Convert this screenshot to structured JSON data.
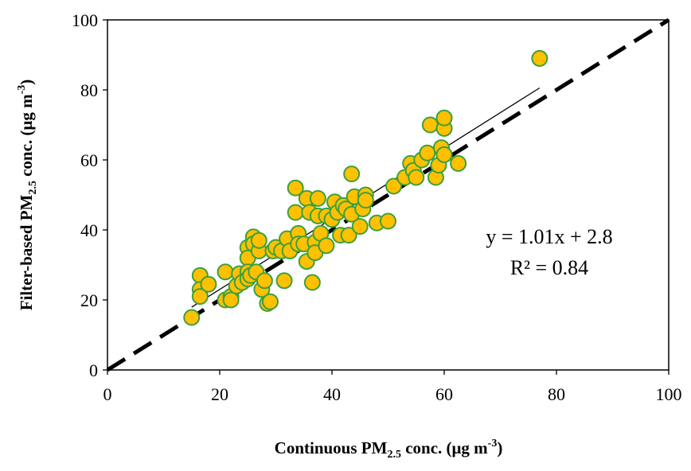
{
  "chart_data": {
    "type": "scatter",
    "title": "",
    "xlabel": {
      "pre": "Continuous PM",
      "sub": "2.5",
      "post": " conc. (μg m",
      "sup": "-3",
      "end": ")"
    },
    "ylabel": {
      "pre": "Filter-based PM",
      "sub": "2.5",
      "post": " conc. (μg m",
      "sup": "-3",
      "end": ")"
    },
    "xlim": [
      0,
      100
    ],
    "ylim": [
      0,
      100
    ],
    "xticks": [
      "0",
      "20",
      "40",
      "60",
      "80",
      "100"
    ],
    "yticks": [
      "0",
      "20",
      "40",
      "60",
      "80",
      "100"
    ],
    "grid": false,
    "legend": "none",
    "marker_fill": "#FFC000",
    "marker_edge": "#3CA03C",
    "points": [
      [
        15,
        15
      ],
      [
        16.5,
        27
      ],
      [
        16.5,
        23
      ],
      [
        16.5,
        21
      ],
      [
        18,
        24.5
      ],
      [
        21,
        28
      ],
      [
        21,
        20
      ],
      [
        22,
        21
      ],
      [
        22,
        20
      ],
      [
        23,
        24
      ],
      [
        23.5,
        27.5
      ],
      [
        24,
        25
      ],
      [
        25,
        35
      ],
      [
        25,
        32
      ],
      [
        25,
        28
      ],
      [
        25,
        26
      ],
      [
        25.5,
        27
      ],
      [
        26,
        38
      ],
      [
        26,
        36
      ],
      [
        26.5,
        28
      ],
      [
        27,
        34
      ],
      [
        27,
        37
      ],
      [
        27.5,
        23
      ],
      [
        28,
        25.5
      ],
      [
        28.5,
        19
      ],
      [
        29,
        19.5
      ],
      [
        29.5,
        34
      ],
      [
        30,
        35
      ],
      [
        31,
        34
      ],
      [
        31.5,
        25.5
      ],
      [
        32,
        37.5
      ],
      [
        32.5,
        34
      ],
      [
        33.5,
        52
      ],
      [
        33.5,
        45
      ],
      [
        34,
        39
      ],
      [
        34,
        36
      ],
      [
        35,
        36
      ],
      [
        35.5,
        31
      ],
      [
        35.5,
        49
      ],
      [
        36,
        45
      ],
      [
        36.5,
        25
      ],
      [
        37,
        36.5
      ],
      [
        37,
        33.5
      ],
      [
        37.5,
        44
      ],
      [
        37.5,
        49
      ],
      [
        38,
        39
      ],
      [
        39,
        44
      ],
      [
        39,
        35.5
      ],
      [
        40,
        43
      ],
      [
        40.5,
        48
      ],
      [
        41,
        45
      ],
      [
        41.5,
        38.5
      ],
      [
        42,
        47
      ],
      [
        42.5,
        46
      ],
      [
        43,
        38.5
      ],
      [
        43.5,
        56
      ],
      [
        43.5,
        44.5
      ],
      [
        44,
        49.5
      ],
      [
        45,
        41
      ],
      [
        45.5,
        46
      ],
      [
        46,
        50
      ],
      [
        46,
        48.5
      ],
      [
        48,
        42
      ],
      [
        50,
        42.5
      ],
      [
        51,
        52.5
      ],
      [
        53,
        55
      ],
      [
        54,
        59
      ],
      [
        54.5,
        57
      ],
      [
        55,
        55
      ],
      [
        56,
        60
      ],
      [
        57,
        62
      ],
      [
        57.5,
        70
      ],
      [
        58.5,
        55
      ],
      [
        59,
        58.5
      ],
      [
        59.5,
        63.5
      ],
      [
        60,
        69
      ],
      [
        60,
        72
      ],
      [
        60,
        61.5
      ],
      [
        62.5,
        59
      ],
      [
        77,
        89
      ]
    ],
    "regression": {
      "slope": 1.01,
      "intercept": 2.8,
      "x_range": [
        15,
        77
      ]
    },
    "reference_line": {
      "type": "1:1",
      "style": "dashed"
    },
    "annotations": [
      "y = 1.01x + 2.8",
      "R² = 0.84"
    ]
  }
}
